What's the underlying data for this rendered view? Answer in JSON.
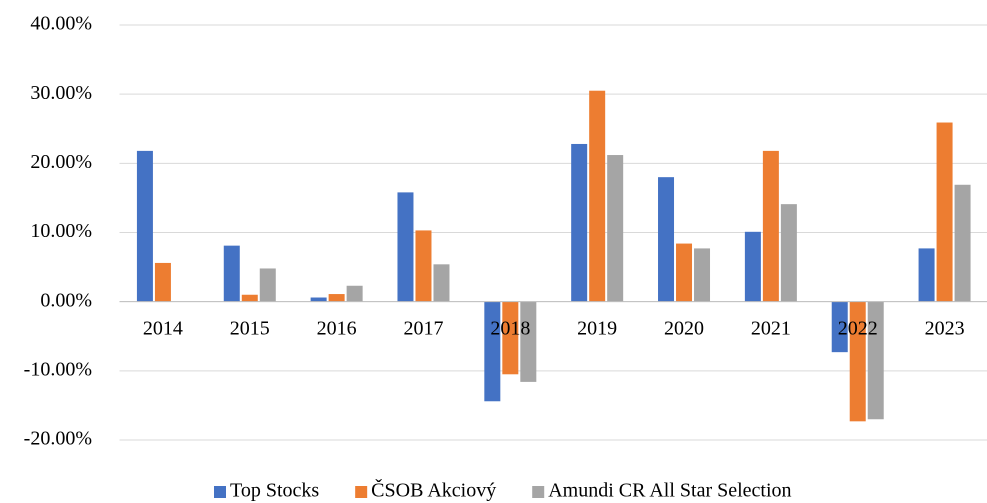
{
  "chart_data": {
    "type": "bar",
    "categories": [
      "2014",
      "2015",
      "2016",
      "2017",
      "2018",
      "2019",
      "2020",
      "2021",
      "2022",
      "2023"
    ],
    "series": [
      {
        "name": "Top Stocks",
        "color": "#4472c4",
        "values": [
          21.8,
          8.1,
          0.6,
          15.8,
          -14.4,
          22.8,
          18.0,
          10.1,
          -7.3,
          7.7
        ]
      },
      {
        "name": "ČSOB Akciový",
        "color": "#ed7d31",
        "values": [
          5.6,
          1.0,
          1.1,
          10.3,
          -10.5,
          30.5,
          8.4,
          21.8,
          -17.3,
          25.9
        ]
      },
      {
        "name": "Amundi CR All Star Selection",
        "color": "#a5a5a5",
        "values": [
          0,
          4.8,
          2.3,
          5.4,
          -11.6,
          21.2,
          7.7,
          14.1,
          -17.0,
          16.9
        ]
      }
    ],
    "ylim": [
      -20,
      40
    ],
    "yticks": [
      {
        "value": -20,
        "label": "-20.00%"
      },
      {
        "value": -10,
        "label": "-10.00%"
      },
      {
        "value": 0,
        "label": "0.00%"
      },
      {
        "value": 10,
        "label": "10.00%"
      },
      {
        "value": 20,
        "label": "20.00%"
      },
      {
        "value": 30,
        "label": "30.00%"
      },
      {
        "value": 40,
        "label": "40.00%"
      }
    ],
    "grid": true,
    "legend": "bottom"
  }
}
